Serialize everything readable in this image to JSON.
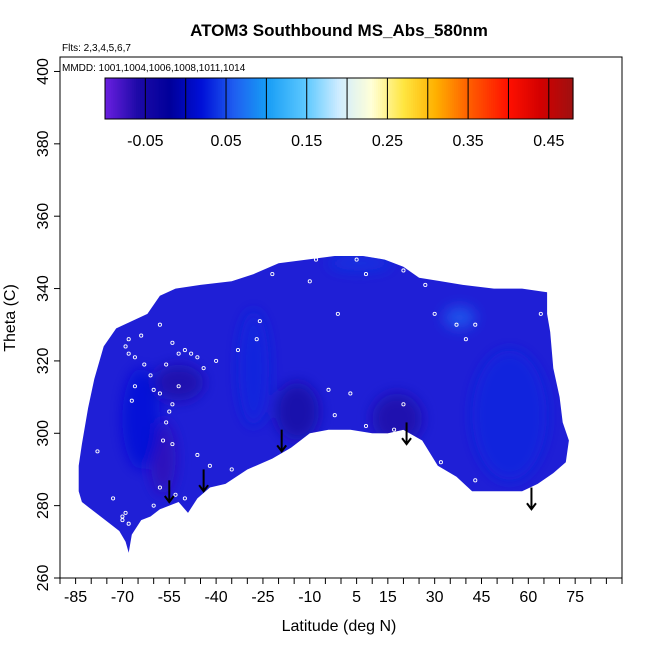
{
  "chart_data": {
    "type": "heatmap",
    "title": "ATOM3 Southbound MS_Abs_580nm",
    "flights_note": "Flts: 2,3,4,5,6,7",
    "dates_note": "MMDD: 1001,1004,1006,1008,1011,1014",
    "xlabel": "Latitude (deg N)",
    "ylabel": "Theta (C)",
    "xlim": [
      -90,
      90
    ],
    "ylim": [
      260,
      404
    ],
    "x_ticks": [
      -85,
      -70,
      -55,
      -40,
      -25,
      -10,
      5,
      15,
      30,
      45,
      60,
      75
    ],
    "x_minor_ticks": [
      -90,
      -85,
      -80,
      -75,
      -70,
      -65,
      -60,
      -55,
      -50,
      -45,
      -40,
      -35,
      -30,
      -25,
      -20,
      -15,
      -10,
      -5,
      0,
      5,
      10,
      15,
      20,
      25,
      30,
      35,
      40,
      45,
      50,
      55,
      60,
      65,
      70,
      75,
      80,
      85,
      90
    ],
    "y_ticks": [
      260,
      280,
      300,
      320,
      340,
      360,
      380,
      400
    ],
    "colorbar": {
      "labels": [
        "-0.05",
        "0.05",
        "0.15",
        "0.25",
        "0.35",
        "0.45"
      ],
      "label_values": [
        -0.05,
        0.05,
        0.15,
        0.25,
        0.35,
        0.45
      ],
      "range": [
        -0.1,
        0.48
      ],
      "segment_edges": [
        -0.1,
        -0.05,
        0.0,
        0.05,
        0.1,
        0.15,
        0.2,
        0.25,
        0.3,
        0.35,
        0.4,
        0.45,
        0.48
      ],
      "stops": [
        {
          "value": -0.1,
          "color": "#6a1fe0"
        },
        {
          "value": -0.06,
          "color": "#1e0aa8"
        },
        {
          "value": -0.02,
          "color": "#00009a"
        },
        {
          "value": 0.02,
          "color": "#0010d8"
        },
        {
          "value": 0.06,
          "color": "#1f5ef0"
        },
        {
          "value": 0.1,
          "color": "#169cf5"
        },
        {
          "value": 0.15,
          "color": "#5fcaff"
        },
        {
          "value": 0.19,
          "color": "#cfecff"
        },
        {
          "value": 0.23,
          "color": "#ffffd8"
        },
        {
          "value": 0.27,
          "color": "#ffe640"
        },
        {
          "value": 0.31,
          "color": "#ffb000"
        },
        {
          "value": 0.35,
          "color": "#ff6000"
        },
        {
          "value": 0.4,
          "color": "#ff1000"
        },
        {
          "value": 0.44,
          "color": "#d20000"
        },
        {
          "value": 0.48,
          "color": "#9e1010"
        }
      ]
    },
    "field": {
      "fill_color": "#1f1fd6",
      "boundary": [
        [
          -84,
          287
        ],
        [
          -84,
          284
        ],
        [
          -83,
          281
        ],
        [
          -80,
          279
        ],
        [
          -77,
          277
        ],
        [
          -74,
          275
        ],
        [
          -71,
          273
        ],
        [
          -69,
          270
        ],
        [
          -68,
          267
        ],
        [
          -67,
          272
        ],
        [
          -64,
          276
        ],
        [
          -61,
          277
        ],
        [
          -58,
          279
        ],
        [
          -55,
          280
        ],
        [
          -52,
          281
        ],
        [
          -49,
          278
        ],
        [
          -46,
          282
        ],
        [
          -42,
          285
        ],
        [
          -37,
          286
        ],
        [
          -30,
          290
        ],
        [
          -22,
          293
        ],
        [
          -16,
          296
        ],
        [
          -10,
          300
        ],
        [
          -4,
          301
        ],
        [
          3,
          301
        ],
        [
          10,
          300
        ],
        [
          15,
          300
        ],
        [
          20,
          301
        ],
        [
          26,
          298
        ],
        [
          31,
          291
        ],
        [
          37,
          288
        ],
        [
          42,
          284
        ],
        [
          50,
          284
        ],
        [
          58,
          284
        ],
        [
          63,
          286
        ],
        [
          68,
          289
        ],
        [
          72,
          292
        ],
        [
          73,
          298
        ],
        [
          71,
          303
        ],
        [
          70,
          310
        ],
        [
          68,
          318
        ],
        [
          67,
          328
        ],
        [
          66,
          333
        ],
        [
          66,
          339
        ],
        [
          58,
          340
        ],
        [
          49,
          340
        ],
        [
          39,
          341
        ],
        [
          32,
          342
        ],
        [
          25,
          343
        ],
        [
          20,
          346
        ],
        [
          14,
          348
        ],
        [
          7,
          349
        ],
        [
          -2,
          349
        ],
        [
          -11,
          348
        ],
        [
          -20,
          347
        ],
        [
          -28,
          344
        ],
        [
          -35,
          342
        ],
        [
          -45,
          341
        ],
        [
          -53,
          340
        ],
        [
          -58,
          338
        ],
        [
          -62,
          333
        ],
        [
          -67,
          331
        ],
        [
          -72,
          329
        ],
        [
          -76,
          324
        ],
        [
          -79,
          315
        ],
        [
          -81,
          307
        ],
        [
          -83,
          297
        ],
        [
          -84,
          291
        ]
      ],
      "features": [
        {
          "x": -57,
          "y": 293,
          "rx": 4,
          "ry": 10,
          "value": -0.07
        },
        {
          "x": -52,
          "y": 314,
          "rx": 8,
          "ry": 5,
          "value": -0.06
        },
        {
          "x": -64,
          "y": 304,
          "rx": 6,
          "ry": 14,
          "value": 0.02
        },
        {
          "x": -28,
          "y": 318,
          "rx": 5,
          "ry": 16,
          "value": 0.03
        },
        {
          "x": -14,
          "y": 306,
          "rx": 7,
          "ry": 8,
          "value": -0.05
        },
        {
          "x": 18,
          "y": 304,
          "rx": 8,
          "ry": 7,
          "value": -0.06
        },
        {
          "x": 54,
          "y": 305,
          "rx": 12,
          "ry": 18,
          "value": 0.03
        },
        {
          "x": 6,
          "y": 347,
          "rx": 10,
          "ry": 2,
          "value": 0.04
        },
        {
          "x": 38,
          "y": 332,
          "rx": 5,
          "ry": 3,
          "value": 0.06
        }
      ]
    },
    "sample_points": [
      [
        -78,
        295
      ],
      [
        -73,
        282
      ],
      [
        -70,
        277
      ],
      [
        -70,
        276
      ],
      [
        -69,
        278
      ],
      [
        -68,
        275
      ],
      [
        -63,
        275
      ],
      [
        -60,
        280
      ],
      [
        -58,
        285
      ],
      [
        -53,
        283
      ],
      [
        -50,
        282
      ],
      [
        -46,
        294
      ],
      [
        -42,
        291
      ],
      [
        -54,
        297
      ],
      [
        -57,
        298
      ],
      [
        -56,
        303
      ],
      [
        -55,
        306
      ],
      [
        -54,
        308
      ],
      [
        -58,
        311
      ],
      [
        -61,
        316
      ],
      [
        -63,
        319
      ],
      [
        -66,
        321
      ],
      [
        -68,
        322
      ],
      [
        -69,
        324
      ],
      [
        -68,
        326
      ],
      [
        -64,
        327
      ],
      [
        -58,
        330
      ],
      [
        -54,
        325
      ],
      [
        -52,
        322
      ],
      [
        -50,
        323
      ],
      [
        -48,
        322
      ],
      [
        -46,
        321
      ],
      [
        -44,
        318
      ],
      [
        -56,
        319
      ],
      [
        -52,
        313
      ],
      [
        -40,
        320
      ],
      [
        -33,
        323
      ],
      [
        -27,
        326
      ],
      [
        -26,
        331
      ],
      [
        -22,
        344
      ],
      [
        -17,
        349
      ],
      [
        -8,
        348
      ],
      [
        -10,
        342
      ],
      [
        -1,
        333
      ],
      [
        5,
        348
      ],
      [
        8,
        344
      ],
      [
        20,
        345
      ],
      [
        25,
        345
      ],
      [
        27,
        341
      ],
      [
        30,
        333
      ],
      [
        37,
        330
      ],
      [
        40,
        326
      ],
      [
        43,
        330
      ],
      [
        -4,
        312
      ],
      [
        -2,
        305
      ],
      [
        3,
        311
      ],
      [
        8,
        302
      ],
      [
        17,
        301
      ],
      [
        20,
        308
      ],
      [
        32,
        292
      ],
      [
        43,
        287
      ],
      [
        64,
        333
      ],
      [
        -35,
        290
      ],
      [
        -60,
        312
      ],
      [
        -66,
        313
      ],
      [
        -67,
        309
      ]
    ],
    "arrow_markers": [
      {
        "x": -55,
        "y_top": 287,
        "y_bottom": 281
      },
      {
        "x": -44,
        "y_top": 290,
        "y_bottom": 284
      },
      {
        "x": -19,
        "y_top": 301,
        "y_bottom": 295
      },
      {
        "x": 21,
        "y_top": 303,
        "y_bottom": 297
      },
      {
        "x": 61,
        "y_top": 285,
        "y_bottom": 279
      }
    ]
  }
}
